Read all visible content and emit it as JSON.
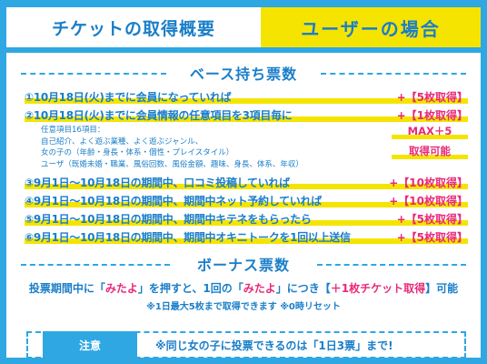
{
  "header": {
    "title": "チケットの取得概要",
    "case": "ユーザーの場合"
  },
  "base": {
    "title": "ベース持ち票数",
    "items": [
      {
        "text": "①10月18日(火)までに会員になっていれば",
        "reward": "+【5枚取得】"
      },
      {
        "text": "②10月18日(火)までに会員情報の任意項目を3項目毎に",
        "reward": "+【1枚取得】"
      },
      {
        "text": "③9月1日～10月18日の期間中、口コミ投稿していれば",
        "reward": "+【10枚取得】"
      },
      {
        "text": "④9月1日～10月18日の期間中、期間中ネット予約していれば",
        "reward": "+【10枚取得】"
      },
      {
        "text": "⑤9月1日～10月18日の期間中、期間中キテネをもらったら",
        "reward": "+【5枚取得】"
      },
      {
        "text": "⑥9月1日～10月18日の期間中、期間中オキニトークを1回以上送信",
        "reward": "+【5枚取得】"
      }
    ],
    "details": [
      "任意項目16項目：",
      "自己紹介、よく遊ぶ業種、よく遊ぶジャンル、",
      "女の子の（年齢・身長・体系・個性・プレイスタイル）",
      "ユーザ（既婚未婚・職業、風俗回数、風俗金額、趣味、身長、体系、年収）"
    ],
    "max_line1": "MAX＋5",
    "max_line2": "取得可能"
  },
  "bonus": {
    "title": "ボーナス票数",
    "line_a": "投票期間中に「",
    "line_b": "みたよ",
    "line_c": "」を押すと、1回の「",
    "line_d": "みたよ",
    "line_e": "」につき【",
    "line_f": "＋1枚チケット取得",
    "line_g": "】可能",
    "sub": "※1日最大5枚まで取得できます ※0時リセット"
  },
  "notice": {
    "label": "注意",
    "text": "※同じ女の子に投票できるのは「1日3票」まで!"
  }
}
